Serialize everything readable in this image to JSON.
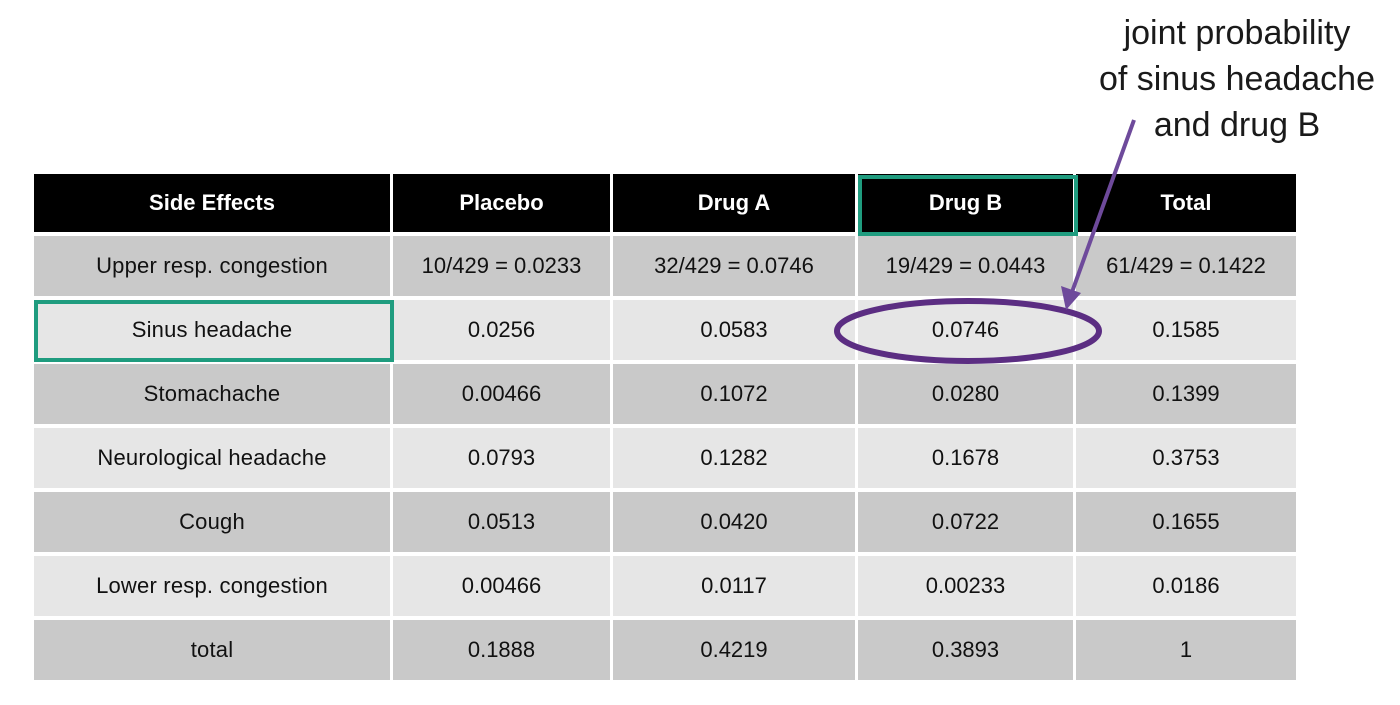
{
  "annotation": {
    "lines": [
      "joint probability",
      "of sinus headache",
      "and drug B"
    ]
  },
  "colors": {
    "header_bg": "#000000",
    "row_dark": "#c9c9c9",
    "row_light": "#e6e6e6",
    "highlight_box": "#1f9c7f",
    "highlight_ellipse": "#5b2d82",
    "arrow": "#6e4a9b"
  },
  "table": {
    "headers": [
      "Side Effects",
      "Placebo",
      "Drug A",
      "Drug B",
      "Total"
    ],
    "rows": [
      [
        "Upper resp. congestion",
        "10/429 = 0.0233",
        "32/429 = 0.0746",
        "19/429 = 0.0443",
        "61/429 = 0.1422"
      ],
      [
        "Sinus headache",
        "0.0256",
        "0.0583",
        "0.0746",
        "0.1585"
      ],
      [
        "Stomachache",
        "0.00466",
        "0.1072",
        "0.0280",
        "0.1399"
      ],
      [
        "Neurological headache",
        "0.0793",
        "0.1282",
        "0.1678",
        "0.3753"
      ],
      [
        "Cough",
        "0.0513",
        "0.0420",
        "0.0722",
        "0.1655"
      ],
      [
        "Lower resp. congestion",
        "0.00466",
        "0.0117",
        "0.00233",
        "0.0186"
      ],
      [
        "total",
        "0.1888",
        "0.4219",
        "0.3893",
        "1"
      ]
    ]
  }
}
